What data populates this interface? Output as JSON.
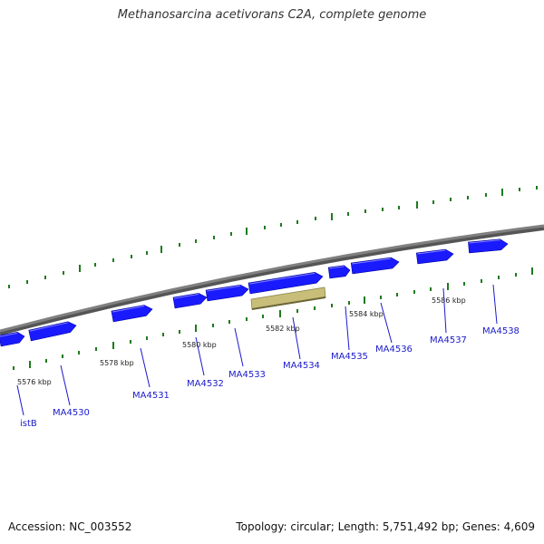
{
  "title": "Methanosarcina acetivorans C2A, complete genome",
  "footer": {
    "accession": "Accession: NC_003552",
    "summary": "Topology: circular; Length: 5,751,492 bp; Genes: 4,609"
  },
  "colors": {
    "forward_gene": "#1a1aff",
    "highlight_gene": "#c8be7a",
    "backbone": "#808080",
    "tick": "#1e7a1e",
    "gene_label": "#1a1acc"
  },
  "ruler_labels": [
    "5576 kbp",
    "5578 kbp",
    "5580 kbp",
    "5582 kbp",
    "5584 kbp",
    "5586 kbp"
  ],
  "gene_labels": [
    "istB",
    "MA4530",
    "MA4531",
    "MA4532",
    "MA4533",
    "MA4534",
    "MA4535",
    "MA4536",
    "MA4537",
    "MA4538"
  ]
}
